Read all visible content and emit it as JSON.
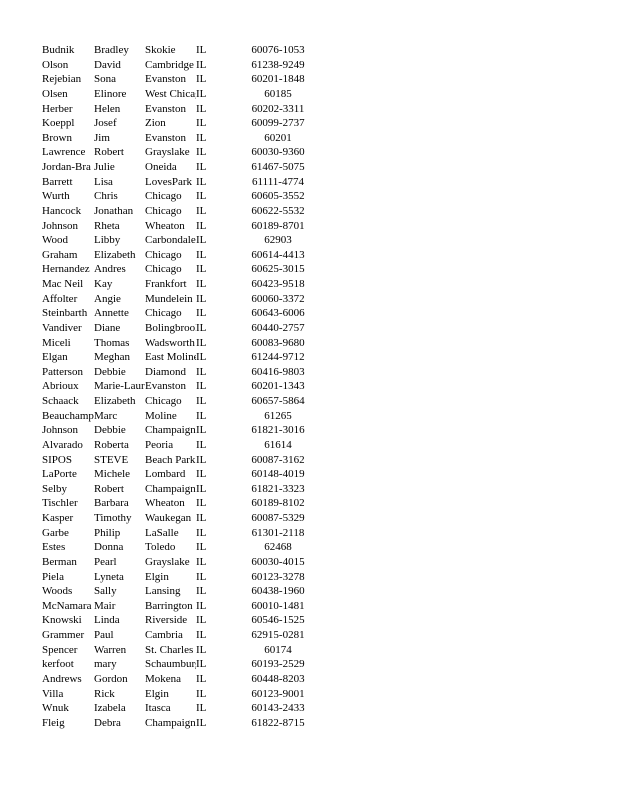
{
  "rows": [
    [
      "Budnik",
      "Bradley",
      "Skokie",
      "IL",
      "60076-1053"
    ],
    [
      "Olson",
      "David",
      "Cambridge",
      "IL",
      "61238-9249"
    ],
    [
      "Rejebian",
      "Sona",
      "Evanston",
      "IL",
      "60201-1848"
    ],
    [
      "Olsen",
      "Elinore",
      "West Chicago",
      "IL",
      "60185"
    ],
    [
      "Herber",
      "Helen",
      "Evanston",
      "IL",
      "60202-3311"
    ],
    [
      "Koeppl",
      "Josef",
      "Zion",
      "IL",
      "60099-2737"
    ],
    [
      "Brown",
      "Jim",
      "Evanston",
      "IL",
      "60201"
    ],
    [
      "Lawrence",
      "Robert",
      "Grayslake",
      "IL",
      "60030-9360"
    ],
    [
      "Jordan-Bra",
      "Julie",
      "Oneida",
      "IL",
      "61467-5075"
    ],
    [
      "Barrett",
      "Lisa",
      "LovesPark",
      "IL",
      "61111-4774"
    ],
    [
      "Wurth",
      "Chris",
      "Chicago",
      "IL",
      "60605-3552"
    ],
    [
      "Hancock",
      "Jonathan",
      "Chicago",
      "IL",
      "60622-5532"
    ],
    [
      "Johnson",
      "Rheta",
      "Wheaton",
      "IL",
      "60189-8701"
    ],
    [
      "Wood",
      "Libby",
      "Carbondale",
      "IL",
      "62903"
    ],
    [
      "Graham",
      "Elizabeth",
      "Chicago",
      "IL",
      "60614-4413"
    ],
    [
      "Hernandez",
      "Andres",
      "Chicago",
      "IL",
      "60625-3015"
    ],
    [
      "Mac Neil",
      "Kay",
      "Frankfort",
      "IL",
      "60423-9518"
    ],
    [
      "Affolter",
      "Angie",
      "Mundelein",
      "IL",
      "60060-3372"
    ],
    [
      "Steinbarth",
      "Annette",
      "Chicago",
      "IL",
      "60643-6006"
    ],
    [
      "Vandiver",
      "Diane",
      "Bolingbrook",
      "IL",
      "60440-2757"
    ],
    [
      "Miceli",
      "Thomas",
      "Wadsworth",
      "IL",
      "60083-9680"
    ],
    [
      "Elgan",
      "Meghan",
      "East Moline",
      "IL",
      "61244-9712"
    ],
    [
      "Patterson",
      "Debbie",
      "Diamond",
      "IL",
      "60416-9803"
    ],
    [
      "Abrioux",
      "Marie-Laure",
      "Evanston",
      "IL",
      "60201-1343"
    ],
    [
      "Schaack",
      "Elizabeth",
      "Chicago",
      "IL",
      "60657-5864"
    ],
    [
      "Beauchamp",
      "Marc",
      "Moline",
      "IL",
      "61265"
    ],
    [
      "Johnson",
      "Debbie",
      "Champaign",
      "IL",
      "61821-3016"
    ],
    [
      "Alvarado",
      "Roberta",
      "Peoria",
      "IL",
      "61614"
    ],
    [
      "SIPOS",
      "STEVE",
      "Beach Park",
      "IL",
      "60087-3162"
    ],
    [
      "LaPorte",
      "Michele",
      "Lombard",
      "IL",
      "60148-4019"
    ],
    [
      "Selby",
      "Robert",
      "Champaign",
      "IL",
      "61821-3323"
    ],
    [
      "Tischler",
      "Barbara",
      "Wheaton",
      "IL",
      "60189-8102"
    ],
    [
      "Kasper",
      "Timothy",
      "Waukegan",
      "IL",
      "60087-5329"
    ],
    [
      "Garbe",
      "Philip",
      "LaSalle",
      "IL",
      "61301-2118"
    ],
    [
      "Estes",
      "Donna",
      "Toledo",
      "IL",
      "62468"
    ],
    [
      "Berman",
      "Pearl",
      "Grayslake",
      "IL",
      "60030-4015"
    ],
    [
      "Piela",
      "Lyneta",
      "Elgin",
      "IL",
      "60123-3278"
    ],
    [
      "Woods",
      "Sally",
      "Lansing",
      "IL",
      "60438-1960"
    ],
    [
      "McNamara",
      "Mair",
      "Barrington",
      "IL",
      "60010-1481"
    ],
    [
      "Knowski",
      "Linda",
      "Riverside",
      "IL",
      "60546-1525"
    ],
    [
      "Grammer",
      "Paul",
      "Cambria",
      "IL",
      "62915-0281"
    ],
    [
      "Spencer",
      "Warren",
      "St. Charles",
      "IL",
      "60174"
    ],
    [
      "kerfoot",
      "mary",
      "Schaumburg",
      "IL",
      "60193-2529"
    ],
    [
      "Andrews",
      "Gordon",
      "Mokena",
      "IL",
      "60448-8203"
    ],
    [
      "Villa",
      "Rick",
      "Elgin",
      "IL",
      "60123-9001"
    ],
    [
      "Wnuk",
      "Izabela",
      "Itasca",
      "IL",
      "60143-2433"
    ],
    [
      "Fleig",
      "Debra",
      "Champaign",
      "IL",
      "61822-8715"
    ]
  ]
}
